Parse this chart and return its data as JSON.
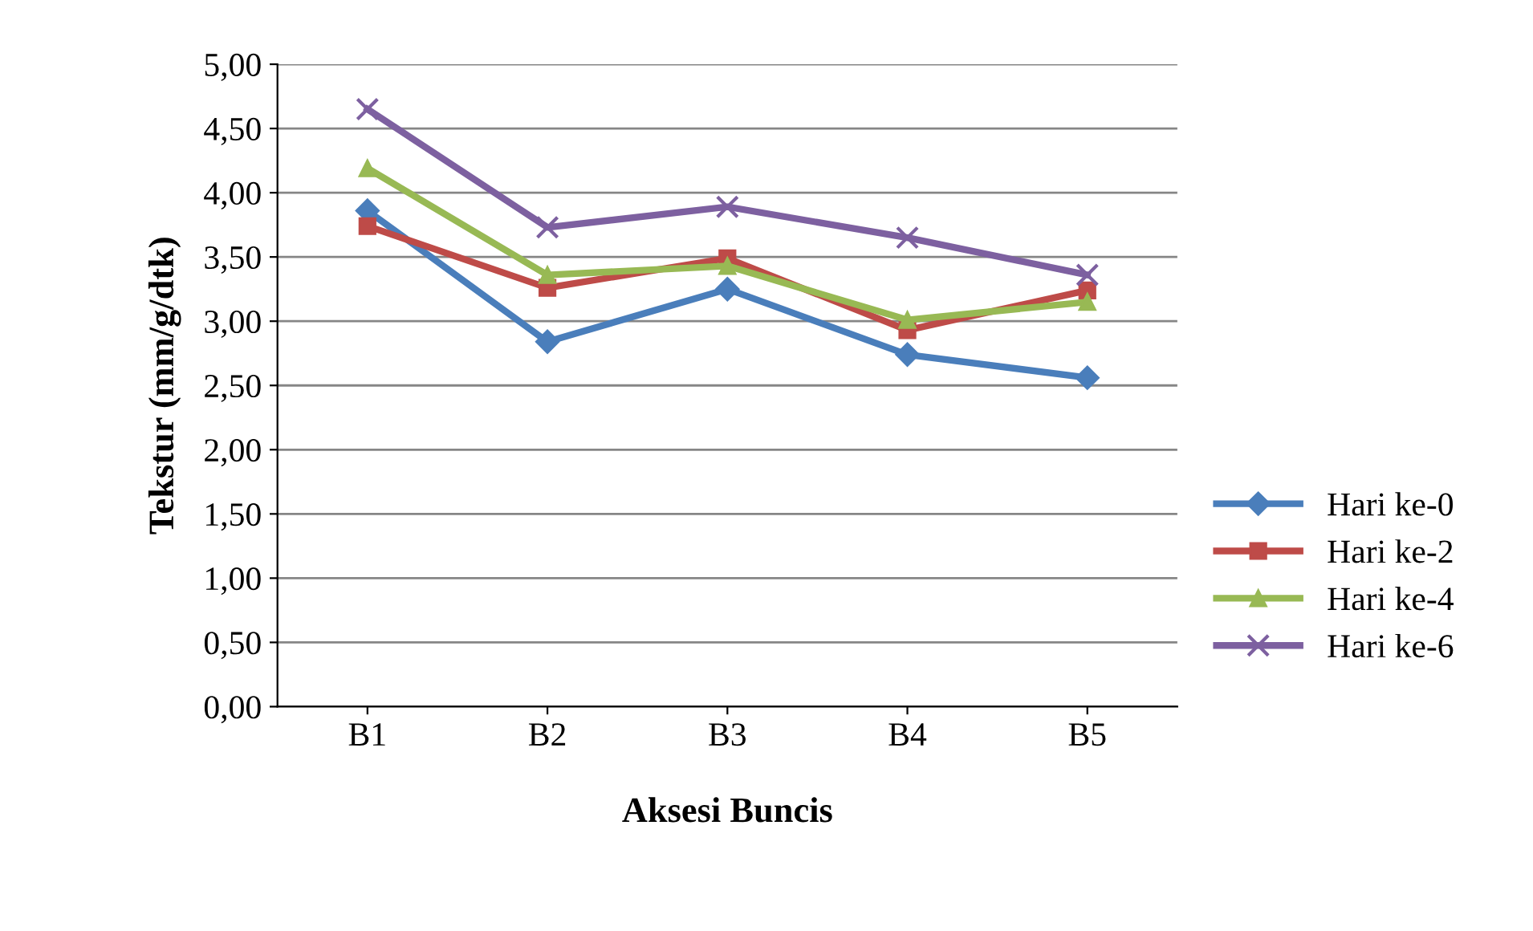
{
  "chart_data": {
    "type": "line",
    "xlabel": "Aksesi Buncis",
    "ylabel": "Tekstur (mm/g/dtk)",
    "categories": [
      "B1",
      "B2",
      "B3",
      "B4",
      "B5"
    ],
    "series": [
      {
        "name": "Hari ke-0",
        "color": "#4a7ebb",
        "marker": "diamond",
        "values": [
          3.86,
          2.84,
          3.25,
          2.74,
          2.56
        ]
      },
      {
        "name": "Hari ke-2",
        "color": "#be4b48",
        "marker": "square",
        "values": [
          3.74,
          3.26,
          3.49,
          2.93,
          3.24
        ]
      },
      {
        "name": "Hari ke-4",
        "color": "#98b954",
        "marker": "triangle",
        "values": [
          4.19,
          3.36,
          3.43,
          3.01,
          3.15
        ]
      },
      {
        "name": "Hari ke-6",
        "color": "#7d60a0",
        "marker": "cross",
        "values": [
          4.65,
          3.73,
          3.89,
          3.65,
          3.36
        ]
      }
    ],
    "ylim": [
      0,
      5
    ],
    "yticks": [
      {
        "value": 0,
        "label": "0,00"
      },
      {
        "value": 0.5,
        "label": "0,50"
      },
      {
        "value": 1,
        "label": "1,00"
      },
      {
        "value": 1.5,
        "label": "1,50"
      },
      {
        "value": 2,
        "label": "2,00"
      },
      {
        "value": 2.5,
        "label": "2,50"
      },
      {
        "value": 3,
        "label": "3,00"
      },
      {
        "value": 3.5,
        "label": "3,50"
      },
      {
        "value": 4,
        "label": "4,00"
      },
      {
        "value": 4.5,
        "label": "4,50"
      },
      {
        "value": 5,
        "label": "5,00"
      }
    ],
    "grid": "y",
    "legend": "right",
    "line_style": "solid"
  }
}
